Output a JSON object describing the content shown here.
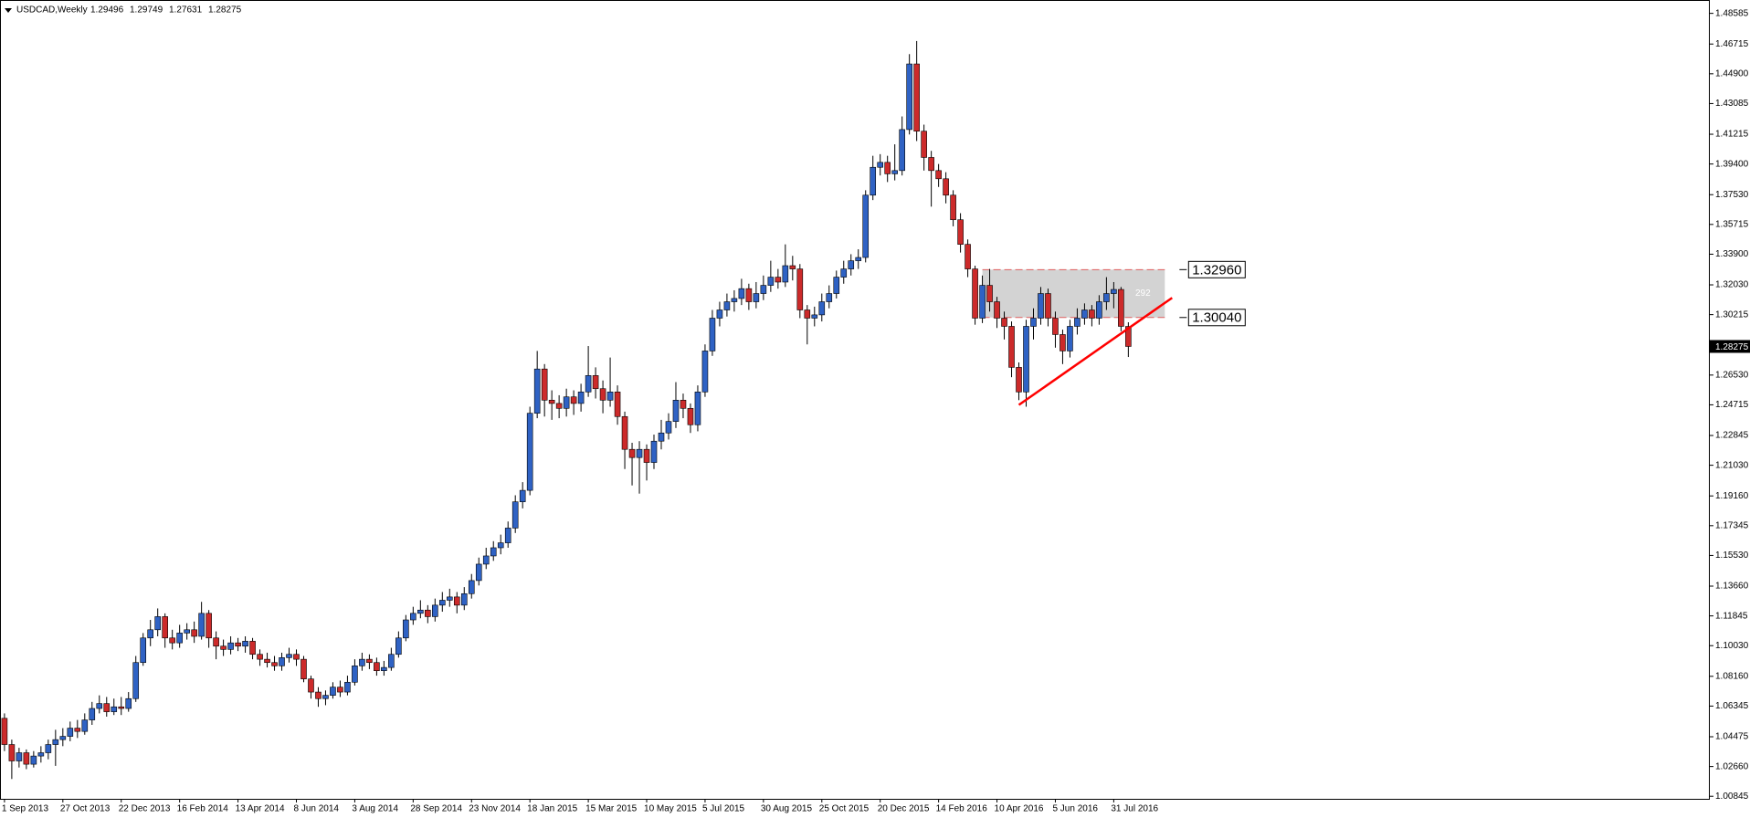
{
  "chart_data": {
    "type": "candlestick",
    "title": "USDCAD,Weekly",
    "categories": [
      "1 Sep 2013",
      null,
      null,
      null,
      null,
      null,
      null,
      null,
      "27 Oct 2013",
      null,
      null,
      null,
      null,
      null,
      null,
      null,
      "22 Dec 2013",
      null,
      null,
      null,
      null,
      null,
      null,
      null,
      "16 Feb 2014",
      null,
      null,
      null,
      null,
      null,
      null,
      null,
      "13 Apr 2014",
      null,
      null,
      null,
      null,
      null,
      null,
      null,
      "8 Jun 2014",
      null,
      null,
      null,
      null,
      null,
      null,
      null,
      "3 Aug 2014",
      null,
      null,
      null,
      null,
      null,
      null,
      null,
      "28 Sep 2014",
      null,
      null,
      null,
      null,
      null,
      null,
      null,
      "23 Nov 2014",
      null,
      null,
      null,
      null,
      null,
      null,
      null,
      "18 Jan 2015",
      null,
      null,
      null,
      null,
      null,
      null,
      null,
      "15 Mar 2015",
      null,
      null,
      null,
      null,
      null,
      null,
      null,
      "10 May 2015",
      null,
      null,
      null,
      null,
      null,
      null,
      null,
      "5 Jul 2015",
      null,
      null,
      null,
      null,
      null,
      null,
      null,
      "30 Aug 2015",
      null,
      null,
      null,
      null,
      null,
      null,
      null,
      "25 Oct 2015",
      null,
      null,
      null,
      null,
      null,
      null,
      null,
      "20 Dec 2015",
      null,
      null,
      null,
      null,
      null,
      null,
      null,
      "14 Feb 2016",
      null,
      null,
      null,
      null,
      null,
      null,
      null,
      "10 Apr 2016",
      null,
      null,
      null,
      null,
      null,
      null,
      null,
      "5 Jun 2016",
      null,
      null,
      null,
      null,
      null,
      null,
      null,
      "31 Jul 2016",
      null,
      null
    ],
    "open": [
      1.056,
      1.04,
      1.03,
      1.035,
      1.028,
      1.033,
      1.035,
      1.04,
      1.043,
      1.045,
      1.05,
      1.048,
      1.055,
      1.062,
      1.065,
      1.06,
      1.063,
      1.062,
      1.068,
      1.09,
      1.105,
      1.11,
      1.118,
      1.105,
      1.102,
      1.108,
      1.11,
      1.106,
      1.12,
      1.105,
      1.1,
      1.098,
      1.102,
      1.1,
      1.103,
      1.095,
      1.092,
      1.09,
      1.088,
      1.093,
      1.095,
      1.092,
      1.08,
      1.072,
      1.068,
      1.07,
      1.075,
      1.072,
      1.078,
      1.088,
      1.092,
      1.09,
      1.085,
      1.087,
      1.095,
      1.105,
      1.116,
      1.12,
      1.122,
      1.118,
      1.125,
      1.128,
      1.13,
      1.125,
      1.132,
      1.14,
      1.15,
      1.155,
      1.16,
      1.163,
      1.172,
      1.188,
      1.195,
      1.242,
      1.269,
      1.25,
      1.248,
      1.245,
      1.252,
      1.248,
      1.255,
      1.265,
      1.257,
      1.25,
      1.255,
      1.24,
      1.22,
      1.215,
      1.22,
      1.212,
      1.225,
      1.23,
      1.237,
      1.25,
      1.245,
      1.235,
      1.255,
      1.28,
      1.3,
      1.305,
      1.31,
      1.312,
      1.318,
      1.31,
      1.315,
      1.32,
      1.325,
      1.322,
      1.332,
      1.33,
      1.305,
      1.3,
      1.302,
      1.31,
      1.315,
      1.325,
      1.33,
      1.335,
      1.337,
      1.375,
      1.392,
      1.395,
      1.388,
      1.39,
      1.415,
      1.455,
      1.414,
      1.398,
      1.39,
      1.385,
      1.375,
      1.36,
      1.345,
      1.33,
      1.3,
      1.32,
      1.31,
      1.3,
      1.295,
      1.27,
      1.255,
      1.295,
      1.3,
      1.315,
      1.3,
      1.29,
      1.28,
      1.295,
      1.3,
      1.305,
      1.3,
      1.31,
      1.315,
      1.3175,
      1.29496
    ],
    "high": [
      1.059,
      1.043,
      1.038,
      1.037,
      1.036,
      1.039,
      1.043,
      1.049,
      1.05,
      1.054,
      1.055,
      1.059,
      1.066,
      1.07,
      1.069,
      1.068,
      1.069,
      1.072,
      1.094,
      1.108,
      1.116,
      1.123,
      1.12,
      1.11,
      1.113,
      1.114,
      1.115,
      1.127,
      1.122,
      1.109,
      1.104,
      1.106,
      1.105,
      1.106,
      1.105,
      1.098,
      1.096,
      1.094,
      1.096,
      1.099,
      1.098,
      1.094,
      1.082,
      1.075,
      1.073,
      1.078,
      1.079,
      1.082,
      1.092,
      1.096,
      1.095,
      1.093,
      1.091,
      1.099,
      1.109,
      1.119,
      1.124,
      1.128,
      1.125,
      1.129,
      1.133,
      1.135,
      1.133,
      1.136,
      1.144,
      1.154,
      1.16,
      1.164,
      1.168,
      1.176,
      1.192,
      1.2,
      1.246,
      1.28,
      1.272,
      1.256,
      1.253,
      1.257,
      1.256,
      1.26,
      1.283,
      1.27,
      1.262,
      1.276,
      1.259,
      1.243,
      1.224,
      1.225,
      1.223,
      1.229,
      1.238,
      1.242,
      1.261,
      1.254,
      1.248,
      1.259,
      1.284,
      1.305,
      1.31,
      1.315,
      1.317,
      1.324,
      1.321,
      1.322,
      1.326,
      1.335,
      1.33,
      1.345,
      1.338,
      1.333,
      1.308,
      1.307,
      1.315,
      1.32,
      1.329,
      1.335,
      1.339,
      1.342,
      1.378,
      1.399,
      1.4,
      1.399,
      1.406,
      1.423,
      1.461,
      1.469,
      1.418,
      1.402,
      1.394,
      1.389,
      1.378,
      1.364,
      1.348,
      1.332,
      1.326,
      1.33,
      1.313,
      1.304,
      1.298,
      1.273,
      1.299,
      1.306,
      1.319,
      1.318,
      1.304,
      1.293,
      1.299,
      1.306,
      1.309,
      1.308,
      1.314,
      1.325,
      1.322,
      1.319,
      1.29749
    ],
    "low": [
      1.036,
      1.019,
      1.026,
      1.025,
      1.026,
      1.029,
      1.031,
      1.027,
      1.039,
      1.042,
      1.044,
      1.046,
      1.052,
      1.059,
      1.057,
      1.058,
      1.058,
      1.06,
      1.066,
      1.088,
      1.1,
      1.106,
      1.099,
      1.098,
      1.099,
      1.104,
      1.102,
      1.104,
      1.099,
      1.092,
      1.094,
      1.095,
      1.097,
      1.096,
      1.092,
      1.088,
      1.087,
      1.085,
      1.085,
      1.09,
      1.088,
      1.078,
      1.068,
      1.063,
      1.064,
      1.068,
      1.069,
      1.07,
      1.076,
      1.085,
      1.086,
      1.082,
      1.082,
      1.085,
      1.093,
      1.103,
      1.113,
      1.117,
      1.114,
      1.115,
      1.121,
      1.124,
      1.12,
      1.122,
      1.129,
      1.137,
      1.147,
      1.152,
      1.156,
      1.16,
      1.169,
      1.184,
      1.192,
      1.239,
      1.24,
      1.238,
      1.239,
      1.24,
      1.241,
      1.243,
      1.252,
      1.251,
      1.242,
      1.246,
      1.235,
      1.208,
      1.198,
      1.193,
      1.201,
      1.208,
      1.22,
      1.226,
      1.233,
      1.239,
      1.23,
      1.231,
      1.252,
      1.277,
      1.295,
      1.301,
      1.304,
      1.308,
      1.305,
      1.306,
      1.311,
      1.316,
      1.318,
      1.319,
      1.323,
      1.3,
      1.284,
      1.295,
      1.298,
      1.306,
      1.312,
      1.321,
      1.326,
      1.33,
      1.334,
      1.372,
      1.387,
      1.383,
      1.384,
      1.387,
      1.412,
      1.408,
      1.39,
      1.368,
      1.38,
      1.37,
      1.356,
      1.34,
      1.325,
      1.296,
      1.297,
      1.304,
      1.294,
      1.287,
      1.264,
      1.25,
      1.246,
      1.287,
      1.296,
      1.295,
      1.282,
      1.272,
      1.276,
      1.29,
      1.296,
      1.295,
      1.296,
      1.305,
      1.306,
      1.292,
      1.27631
    ],
    "close": [
      1.04,
      1.03,
      1.035,
      1.028,
      1.033,
      1.035,
      1.04,
      1.043,
      1.045,
      1.05,
      1.048,
      1.055,
      1.062,
      1.065,
      1.06,
      1.063,
      1.062,
      1.068,
      1.09,
      1.105,
      1.11,
      1.118,
      1.105,
      1.102,
      1.108,
      1.11,
      1.106,
      1.12,
      1.105,
      1.1,
      1.098,
      1.102,
      1.1,
      1.103,
      1.095,
      1.092,
      1.09,
      1.088,
      1.093,
      1.095,
      1.092,
      1.08,
      1.072,
      1.068,
      1.07,
      1.075,
      1.072,
      1.078,
      1.088,
      1.092,
      1.09,
      1.085,
      1.087,
      1.095,
      1.105,
      1.116,
      1.12,
      1.122,
      1.118,
      1.125,
      1.128,
      1.13,
      1.125,
      1.132,
      1.14,
      1.15,
      1.155,
      1.16,
      1.163,
      1.172,
      1.188,
      1.195,
      1.242,
      1.269,
      1.25,
      1.248,
      1.245,
      1.252,
      1.248,
      1.255,
      1.265,
      1.257,
      1.25,
      1.255,
      1.24,
      1.22,
      1.215,
      1.22,
      1.212,
      1.225,
      1.23,
      1.237,
      1.25,
      1.245,
      1.235,
      1.255,
      1.28,
      1.3,
      1.305,
      1.31,
      1.312,
      1.318,
      1.31,
      1.315,
      1.32,
      1.325,
      1.322,
      1.332,
      1.33,
      1.305,
      1.3,
      1.302,
      1.31,
      1.315,
      1.325,
      1.33,
      1.335,
      1.337,
      1.375,
      1.392,
      1.395,
      1.388,
      1.39,
      1.415,
      1.455,
      1.414,
      1.398,
      1.39,
      1.385,
      1.375,
      1.36,
      1.345,
      1.33,
      1.3,
      1.32,
      1.31,
      1.3,
      1.295,
      1.27,
      1.255,
      1.295,
      1.3,
      1.315,
      1.3,
      1.29,
      1.28,
      1.295,
      1.3,
      1.305,
      1.3,
      1.31,
      1.315,
      1.3175,
      1.295,
      1.28275
    ],
    "up_color": "#2f62c4",
    "down_color": "#cc2a2a",
    "ylim": [
      1.0069,
      1.494
    ],
    "yticks": [
      {
        "value": 1.00845,
        "label": "1.00845"
      },
      {
        "value": 1.0266,
        "label": "1.02660"
      },
      {
        "value": 1.04475,
        "label": "1.04475"
      },
      {
        "value": 1.06345,
        "label": "1.06345"
      },
      {
        "value": 1.0816,
        "label": "1.08160"
      },
      {
        "value": 1.1003,
        "label": "1.10030"
      },
      {
        "value": 1.11845,
        "label": "1.11845"
      },
      {
        "value": 1.1366,
        "label": "1.13660"
      },
      {
        "value": 1.1553,
        "label": "1.15530"
      },
      {
        "value": 1.17345,
        "label": "1.17345"
      },
      {
        "value": 1.1916,
        "label": "1.19160"
      },
      {
        "value": 1.2103,
        "label": "1.21030"
      },
      {
        "value": 1.22845,
        "label": "1.22845"
      },
      {
        "value": 1.24715,
        "label": "1.24715"
      },
      {
        "value": 1.2653,
        "label": "1.26530"
      },
      {
        "value": 1.30215,
        "label": "1.30215"
      },
      {
        "value": 1.3203,
        "label": "1.32030"
      },
      {
        "value": 1.339,
        "label": "1.33900"
      },
      {
        "value": 1.35715,
        "label": "1.35715"
      },
      {
        "value": 1.3753,
        "label": "1.37530"
      },
      {
        "value": 1.394,
        "label": "1.39400"
      },
      {
        "value": 1.41215,
        "label": "1.41215"
      },
      {
        "value": 1.43085,
        "label": "1.43085"
      },
      {
        "value": 1.449,
        "label": "1.44900"
      },
      {
        "value": 1.46715,
        "label": "1.46715"
      },
      {
        "value": 1.48585,
        "label": "1.48585"
      }
    ],
    "zone": {
      "x": [
        134,
        159
      ],
      "color": "#d3d3d3"
    },
    "zone_label": "292",
    "levels": [
      {
        "value": 1.3296,
        "label": "1.32960"
      },
      {
        "value": 1.3004,
        "label": "1.30040"
      }
    ],
    "trendline": {
      "x": [
        139,
        160
      ],
      "y": [
        1.2471,
        1.3124
      ],
      "color": "#ff0000"
    }
  }
}
